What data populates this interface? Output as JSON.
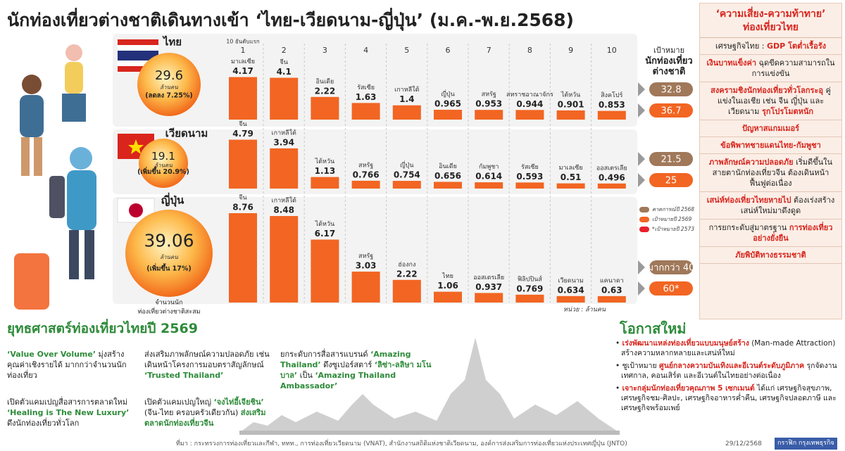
{
  "title": "นักท่องเที่ยวต่างชาติเดินทางเข้า ‘ไทย-เวียดนาม-ญี่ปุ่น’ (ม.ค.-พ.ย.2568)",
  "rank_header": "10 อันดับแรก",
  "ranks": [
    1,
    2,
    3,
    4,
    5,
    6,
    7,
    8,
    9,
    10
  ],
  "target_header": [
    "เป้าหมาย",
    "นักท่องเที่ยว",
    "ต่างชาติ"
  ],
  "legend": [
    {
      "name": "คาดการณ์ปี 2568",
      "color": "#a0785a"
    },
    {
      "name": "เป้าหมายปี 2569",
      "color": "#f26522"
    },
    {
      "name": "*เป้าหมายปี 2573",
      "color": "#e8202a"
    }
  ],
  "cumulative_label": [
    "จำนวนนัก",
    "ท่องเที่ยวต่างชาติสะสม"
  ],
  "unit_note": "หน่วย : ล้านคน",
  "chart_data": [
    {
      "type": "bar",
      "title": "ไทย",
      "total": 29.6,
      "total_unit": "ล้านคน",
      "change": "(ลดลง 7.25%)",
      "categories": [
        "มาเลเซีย",
        "จีน",
        "อินเดีย",
        "รัสเซีย",
        "เกาหลีใต้",
        "ญี่ปุ่น",
        "สหรัฐ",
        "สหราชอาณาจักร",
        "ไต้หวัน",
        "สิงคโปร์"
      ],
      "values": [
        4.17,
        4.1,
        2.22,
        1.63,
        1.4,
        0.965,
        0.953,
        0.944,
        0.901,
        0.853
      ],
      "color": "#f26522",
      "ylim": [
        0,
        9
      ],
      "targets": [
        32.8,
        36.7
      ]
    },
    {
      "type": "bar",
      "title": "เวียดนาม",
      "total": 19.1,
      "total_unit": "ล้านคน",
      "change": "(เพิ่มขึ้น 20.9%)",
      "categories": [
        "จีน",
        "เกาหลีใต้",
        "ไต้หวัน",
        "สหรัฐ",
        "ญี่ปุ่น",
        "อินเดีย",
        "กัมพูชา",
        "รัสเซีย",
        "มาเลเซีย",
        "ออสเตรเลีย"
      ],
      "values": [
        4.79,
        3.94,
        1.13,
        0.766,
        0.754,
        0.656,
        0.614,
        0.593,
        0.51,
        0.496
      ],
      "color": "#f26522",
      "ylim": [
        0,
        9
      ],
      "targets": [
        21.5,
        25
      ]
    },
    {
      "type": "bar",
      "title": "ญี่ปุ่น",
      "total": 39.06,
      "total_unit": "ล้านคน",
      "change": "(เพิ่มขึ้น 17%)",
      "categories": [
        "จีน",
        "เกาหลีใต้",
        "ไต้หวัน",
        "สหรัฐ",
        "ฮ่องกง",
        "ไทย",
        "ออสเตรเลีย",
        "ฟิลิปปินส์",
        "เวียดนาม",
        "แคนาดา"
      ],
      "values": [
        8.76,
        8.48,
        6.17,
        3.03,
        2.22,
        1.06,
        0.937,
        0.769,
        0.634,
        0.63
      ],
      "color": "#f26522",
      "ylim": [
        0,
        9
      ],
      "targets": [
        {
          "value": 40,
          "label": "มากกว่า 40"
        },
        {
          "value": 60,
          "label": "60*"
        }
      ]
    }
  ],
  "risks": {
    "title": [
      "‘ความเสี่ยง-ความท้าทาย’",
      "ท่องเที่ยวไทย"
    ],
    "items": [
      [
        {
          "text": "เศรษฐกิจไทย : "
        },
        {
          "text": "GDP โตต่ำเรื้อรัง",
          "hl": true
        }
      ],
      [
        {
          "text": "เงินบาทแข็งค่า",
          "hl": true
        },
        {
          "text": " ฉุดขีดความสามารถในการแข่งขัน"
        }
      ],
      [
        {
          "text": "สงครามชิงนักท่องเที่ยวทั่วโลกระอุ",
          "hl": true
        },
        {
          "text": " คู่แข่งในเอเชีย เช่น จีน ญี่ปุ่น และเวียดนาม "
        },
        {
          "text": "รุกโปรโมตหนัก",
          "hl": true
        }
      ],
      [
        {
          "text": "ปัญหาสแกมเมอร์",
          "hl": true
        }
      ],
      [
        {
          "text": "ข้อพิพาทชายแดนไทย-กัมพูชา",
          "hl": true
        }
      ],
      [
        {
          "text": "ภาพลักษณ์ความปลอดภัย",
          "hl": true
        },
        {
          "text": " เริ่มดีขึ้นในสายตานักท่องเที่ยวจีน ต้องเดินหน้าฟื้นฟูต่อเนื่อง"
        }
      ],
      [
        {
          "text": "เสน่ห์ท่องเที่ยวไทยหายไป",
          "hl": true
        },
        {
          "text": " ต้องเร่งสร้างเสน่ห์ใหม่มาดึงดูด"
        }
      ],
      [
        {
          "text": "การยกระดับสู่มาตรฐาน "
        },
        {
          "text": "การท่องเที่ยวอย่างยั่งยืน",
          "hl": true
        }
      ],
      [
        {
          "text": "ภัยพิบัติทางธรรมชาติ",
          "hl": true
        }
      ]
    ]
  },
  "strategy": {
    "title": "ยุทธศาสตร์ท่องเที่ยวไทยปี 2569",
    "cells": [
      [
        {
          "text": "‘Value Over Volume’",
          "hl": true
        },
        {
          "text": " มุ่งสร้างคุณค่าเชิงรายได้ มากกว่าจำนวนนักท่องเที่ยว"
        }
      ],
      [
        {
          "text": "ส่งเสริมภาพลักษณ์ความปลอดภัย เช่น เดินหน้าโครงการมอบตราสัญลักษณ์ "
        },
        {
          "text": "‘Trusted Thailand’",
          "hl": true
        }
      ],
      [
        {
          "text": "ยกระดับการสื่อสารแบรนด์ "
        },
        {
          "text": "‘Amazing Thailand’",
          "hl": true
        },
        {
          "text": " ดึงซูเปอร์สตาร์ "
        },
        {
          "text": "‘ลิซ่า-ลลิษา มโนบาล’",
          "hl": true
        },
        {
          "text": " เป็น "
        },
        {
          "text": "‘Amazing Thailand Ambassador’",
          "hl": true
        }
      ],
      [
        {
          "text": "เปิดตัวแคมเปญสื่อสารการตลาดใหม่ "
        },
        {
          "text": "‘Healing is The New Luxury’",
          "hl": true
        },
        {
          "text": " ดึงนักท่องเที่ยวทั่วโลก"
        }
      ],
      [
        {
          "text": "เปิดตัวแคมเปญใหญ่ "
        },
        {
          "text": "‘จงไท่อี้เจียชิน’",
          "hl": true
        },
        {
          "text": " (จีน-ไทย ครอบครัวเดียวกัน) "
        },
        {
          "text": "ส่งเสริมตลาดนักท่องเที่ยวจีน",
          "hl": true
        }
      ]
    ]
  },
  "opportunities": {
    "title": "โอกาสใหม่",
    "items": [
      [
        {
          "text": "เร่งพัฒนาแหล่งท่องเที่ยวแบบมนุษย์สร้าง",
          "hl": true
        },
        {
          "text": " (Man-made Attraction) สร้างความหลากหลายและเสน่ห์ใหม่"
        }
      ],
      [
        {
          "text": "ชูเป้าหมาย "
        },
        {
          "text": "ศูนย์กลางความบันเทิงและอีเวนต์ระดับภูมิภาค",
          "hl": true
        },
        {
          "text": " รุกจัดงานเทศกาล, คอนเสิร์ต และอีเวนต์ในไทยอย่างต่อเนื่อง"
        }
      ],
      [
        {
          "text": "เจาะกลุ่มนักท่องเที่ยวคุณภาพ 5 เซกเมนต์",
          "hl": true
        },
        {
          "text": " ได้แก่ เศรษฐกิจสุขภาพ, เศรษฐกิจชม-ศิลปะ, เศรษฐกิจอาหารค่ำคืน, เศรษฐกิจปลอดภาษี และเศรษฐกิจพร้อมเพย์"
        }
      ]
    ]
  },
  "source": "ที่มา : กระทรวงการท่องเที่ยวและกีฬา, ททท., การท่องเที่ยวเวียดนาม (VNAT), สำนักงานสถิติแห่งชาติเวียดนาม, องค์การส่งเสริมการท่องเที่ยวแห่งประเทศญี่ปุ่น (JNTO)",
  "date": "29/12/2568",
  "brand": "กราฟิก กรุงเทพธุรกิจ"
}
